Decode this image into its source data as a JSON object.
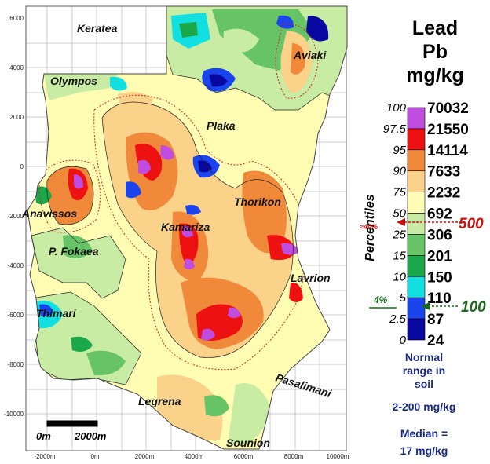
{
  "map": {
    "places": [
      "Keratea",
      "Aviaki",
      "Olympos",
      "Plaka",
      "Thorikon",
      "Anavissos",
      "Kamariza",
      "P. Fokaea",
      "Lavrion",
      "Thimari",
      "Legrena",
      "Pasalimani",
      "Sounion"
    ],
    "y_ticks": [
      "6000",
      "4000",
      "2000",
      "0",
      "-2000",
      "-4000",
      "-6000",
      "-8000",
      "-10000"
    ],
    "x_ticks": [
      "-2000m",
      "0m",
      "2000m",
      "4000m",
      "6000m",
      "8000m",
      "10000m"
    ],
    "scale_bar": {
      "start": "0m",
      "end": "2000m"
    }
  },
  "legend": {
    "title_lines": [
      "Lead",
      "Pb",
      "mg/kg"
    ],
    "axis_label": "Percentiles",
    "percentiles": [
      "100",
      "97.5",
      "95",
      "90",
      "75",
      "50",
      "25",
      "15",
      "10",
      "5",
      "2.5",
      "0"
    ],
    "values": [
      "70032",
      "21550",
      "14114",
      "7633",
      "2232",
      "692",
      "306",
      "201",
      "150",
      "110",
      "87",
      "24"
    ],
    "colors": [
      "#c04de0",
      "#ee1111",
      "#f08a3a",
      "#fbd28a",
      "#fffcb4",
      "#c8eca4",
      "#66c466",
      "#1aa84a",
      "#12e0e0",
      "#1a44ee",
      "#0808a0"
    ],
    "markers": [
      {
        "label": "500",
        "side_note": "≈40%",
        "color": "#cc1111"
      },
      {
        "label": "100",
        "side_note": "4%",
        "color": "#1a6a1a"
      }
    ],
    "notes": [
      "Normal",
      "range in",
      "soil",
      "2-200 mg/kg",
      "Median =",
      "17 mg/kg"
    ]
  }
}
